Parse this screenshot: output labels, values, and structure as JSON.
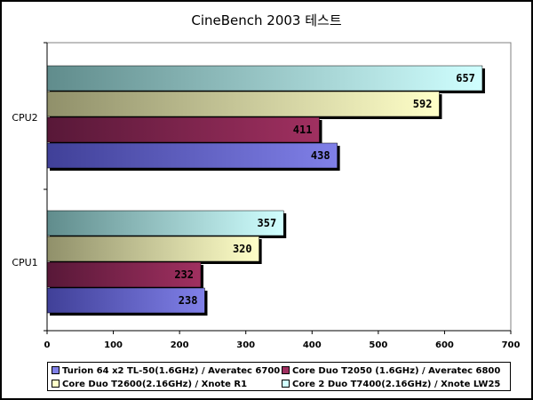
{
  "chart_data": {
    "type": "bar",
    "orientation": "horizontal",
    "title": "CineBench 2003 테스트",
    "categories": [
      "CPU1",
      "CPU2"
    ],
    "xlim": [
      0,
      700
    ],
    "xticks": [
      "0",
      "100",
      "200",
      "300",
      "400",
      "500",
      "600",
      "700"
    ],
    "grid": false,
    "legend_position": "bottom",
    "series": [
      {
        "name": "Turion 64 x2 TL-50(1.6GHz) / Averatec 6700",
        "values": [
          238,
          438
        ],
        "color": "#8080e8",
        "color_dark": "#404098"
      },
      {
        "name": "Core Duo T2050 (1.6GHz) / Averatec 6800",
        "values": [
          232,
          411
        ],
        "color": "#a03060",
        "color_dark": "#581838"
      },
      {
        "name": "Core Duo T2600(2.16GHz) / Xnote R1",
        "values": [
          320,
          592
        ],
        "color": "#ffffc8",
        "color_dark": "#90906a"
      },
      {
        "name": "Core 2 Duo T7400(2.16GHz) / Xnote LW25",
        "values": [
          357,
          657
        ],
        "color": "#d0ffff",
        "color_dark": "#608c8c"
      }
    ]
  }
}
